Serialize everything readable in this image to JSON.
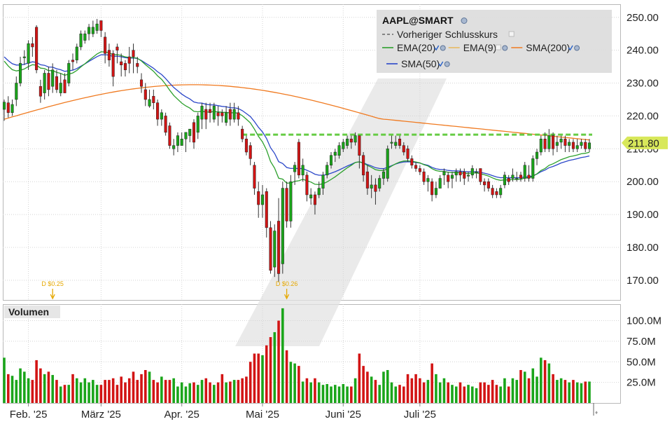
{
  "chart_data": {
    "type": "candlestick",
    "symbol": "AAPL@SMART",
    "last_price_label": "211.80",
    "prev_close": 214.3,
    "colors": {
      "up": "#1aa51a",
      "down": "#d21414",
      "ema20": "#2ca02c",
      "ema9": "#e8b75a",
      "sma200": "#f07a20",
      "sma50": "#2b47c9",
      "prev_close": "#66cc44",
      "dividend": "#e6a800",
      "price_tag": "#d8e85a"
    },
    "legend": {
      "row1": [
        {
          "label": "Vorheriger Schlusskurs",
          "style": "dashed",
          "color": "#666666"
        }
      ],
      "row2": [
        {
          "label": "EMA(20)",
          "color": "#2ca02c"
        },
        {
          "label": "EMA(9)",
          "color": "#e8b75a"
        },
        {
          "label": "SMA(200)",
          "color": "#f07a20"
        }
      ],
      "row3": [
        {
          "label": "SMA(50)",
          "color": "#2b47c9"
        }
      ]
    },
    "price_axis": {
      "min": 164,
      "max": 254,
      "ticks": [
        "170.00",
        "180.00",
        "190.00",
        "200.00",
        "210.00",
        "220.00",
        "230.00",
        "240.00",
        "250.00"
      ]
    },
    "volume_axis": {
      "title": "Volumen",
      "min": 0,
      "max": 120,
      "ticks": [
        "25.0M",
        "50.0M",
        "75.0M",
        "100.0M"
      ]
    },
    "time_axis": {
      "labels": [
        {
          "index": 6,
          "text": "Feb. '25"
        },
        {
          "index": 24,
          "text": "März '25"
        },
        {
          "index": 44,
          "text": "Apr. '25"
        },
        {
          "index": 64,
          "text": "Mai '25"
        },
        {
          "index": 84,
          "text": "Juni '25"
        },
        {
          "index": 103,
          "text": "Juli '25"
        }
      ]
    },
    "dividends": [
      {
        "index": 12,
        "text": "D $0.25"
      },
      {
        "index": 70,
        "text": "D $0.26"
      }
    ],
    "bars": [
      {
        "o": 222,
        "c": 224.2,
        "h": 225,
        "l": 218.5,
        "v": 55
      },
      {
        "o": 224,
        "c": 221,
        "h": 226,
        "l": 219.5,
        "v": 35
      },
      {
        "o": 221,
        "c": 223.5,
        "h": 225,
        "l": 220,
        "v": 33
      },
      {
        "o": 225,
        "c": 230,
        "h": 232,
        "l": 223,
        "v": 28
      },
      {
        "o": 230,
        "c": 236,
        "h": 238,
        "l": 229,
        "v": 42
      },
      {
        "o": 238,
        "c": 238,
        "h": 240,
        "l": 235.5,
        "v": 38
      },
      {
        "o": 236,
        "c": 242,
        "h": 243,
        "l": 234,
        "v": 30
      },
      {
        "o": 242,
        "c": 241,
        "h": 244,
        "l": 238,
        "v": 28
      },
      {
        "o": 247,
        "c": 234,
        "h": 247.6,
        "l": 233,
        "v": 52
      },
      {
        "o": 229,
        "c": 226,
        "h": 231,
        "l": 224,
        "v": 42
      },
      {
        "o": 227,
        "c": 233,
        "h": 234,
        "l": 225,
        "v": 35
      },
      {
        "o": 233,
        "c": 228,
        "h": 235,
        "l": 226,
        "v": 38
      },
      {
        "o": 229,
        "c": 234,
        "h": 236,
        "l": 227,
        "v": 34
      },
      {
        "o": 232,
        "c": 228,
        "h": 234,
        "l": 227,
        "v": 28
      },
      {
        "o": 227,
        "c": 230,
        "h": 233,
        "l": 226,
        "v": 20
      },
      {
        "o": 231,
        "c": 227,
        "h": 233,
        "l": 227,
        "v": 22
      },
      {
        "o": 230,
        "c": 236,
        "h": 237,
        "l": 229,
        "v": 22
      },
      {
        "o": 237,
        "c": 236.5,
        "h": 239,
        "l": 234,
        "v": 35
      },
      {
        "o": 237,
        "c": 241,
        "h": 242,
        "l": 236,
        "v": 30
      },
      {
        "o": 241,
        "c": 245,
        "h": 246,
        "l": 240,
        "v": 25
      },
      {
        "o": 243,
        "c": 245,
        "h": 246,
        "l": 242,
        "v": 30
      },
      {
        "o": 245,
        "c": 247,
        "h": 248,
        "l": 243,
        "v": 25
      },
      {
        "o": 245,
        "c": 247,
        "h": 249,
        "l": 244,
        "v": 28
      },
      {
        "o": 246,
        "c": 248,
        "h": 249.5,
        "l": 245,
        "v": 22
      },
      {
        "o": 249,
        "c": 246,
        "h": 249,
        "l": 244,
        "v": 22
      },
      {
        "o": 244,
        "c": 239,
        "h": 245.5,
        "l": 236,
        "v": 28
      },
      {
        "o": 240,
        "c": 237,
        "h": 242,
        "l": 235,
        "v": 28
      },
      {
        "o": 239,
        "c": 232,
        "h": 240,
        "l": 229,
        "v": 30
      },
      {
        "o": 241,
        "c": 240,
        "h": 242,
        "l": 236,
        "v": 22
      },
      {
        "o": 236.5,
        "c": 235.5,
        "h": 239,
        "l": 232,
        "v": 32
      },
      {
        "o": 236,
        "c": 234,
        "h": 237,
        "l": 232,
        "v": 25
      },
      {
        "o": 238,
        "c": 236,
        "h": 241,
        "l": 233,
        "v": 30
      },
      {
        "o": 240,
        "c": 238,
        "h": 242,
        "l": 233,
        "v": 38
      },
      {
        "o": 236,
        "c": 235,
        "h": 238,
        "l": 233,
        "v": 28
      },
      {
        "o": 231,
        "c": 229,
        "h": 233,
        "l": 227,
        "v": 35
      },
      {
        "o": 228,
        "c": 225,
        "h": 230,
        "l": 223,
        "v": 40
      },
      {
        "o": 223,
        "c": 225,
        "h": 228,
        "l": 222.5,
        "v": 38
      },
      {
        "o": 226,
        "c": 224,
        "h": 228,
        "l": 222,
        "v": 28
      },
      {
        "o": 224,
        "c": 219,
        "h": 225,
        "l": 217,
        "v": 25
      },
      {
        "o": 219,
        "c": 221,
        "h": 222,
        "l": 217,
        "v": 32
      },
      {
        "o": 220,
        "c": 215,
        "h": 221,
        "l": 214,
        "v": 28
      },
      {
        "o": 217,
        "c": 211,
        "h": 218,
        "l": 210,
        "v": 28
      },
      {
        "o": 210,
        "c": 211,
        "h": 213,
        "l": 208,
        "v": 30
      },
      {
        "o": 211,
        "c": 214,
        "h": 215,
        "l": 209,
        "v": 20
      },
      {
        "o": 211,
        "c": 213,
        "h": 215,
        "l": 211,
        "v": 25
      },
      {
        "o": 213,
        "c": 215,
        "h": 215,
        "l": 209,
        "v": 20
      },
      {
        "o": 214,
        "c": 216,
        "h": 216,
        "l": 212,
        "v": 24
      },
      {
        "o": 218,
        "c": 212,
        "h": 219,
        "l": 210,
        "v": 25
      },
      {
        "o": 215,
        "c": 220,
        "h": 221,
        "l": 213,
        "v": 22
      },
      {
        "o": 219,
        "c": 223,
        "h": 224,
        "l": 216,
        "v": 28
      },
      {
        "o": 222,
        "c": 219,
        "h": 224,
        "l": 216,
        "v": 30
      },
      {
        "o": 222,
        "c": 221,
        "h": 224,
        "l": 218,
        "v": 25
      },
      {
        "o": 219,
        "c": 223,
        "h": 224,
        "l": 218,
        "v": 22
      },
      {
        "o": 221,
        "c": 220,
        "h": 223,
        "l": 217,
        "v": 25
      },
      {
        "o": 221,
        "c": 220,
        "h": 222,
        "l": 218,
        "v": 35
      },
      {
        "o": 218,
        "c": 221,
        "h": 223,
        "l": 217,
        "v": 25
      },
      {
        "o": 222,
        "c": 219,
        "h": 224,
        "l": 217,
        "v": 26
      },
      {
        "o": 219,
        "c": 222,
        "h": 224,
        "l": 218,
        "v": 28
      },
      {
        "o": 221,
        "c": 219,
        "h": 223,
        "l": 217,
        "v": 28
      },
      {
        "o": 216,
        "c": 213,
        "h": 217,
        "l": 212,
        "v": 30
      },
      {
        "o": 213,
        "c": 209,
        "h": 214,
        "l": 208,
        "v": 32
      },
      {
        "o": 211,
        "c": 207,
        "h": 212,
        "l": 205,
        "v": 50
      },
      {
        "o": 205,
        "c": 198,
        "h": 206,
        "l": 196,
        "v": 60
      },
      {
        "o": 197,
        "c": 193,
        "h": 200,
        "l": 189,
        "v": 60
      },
      {
        "o": 193,
        "c": 196,
        "h": 199,
        "l": 189,
        "v": 58
      },
      {
        "o": 197,
        "c": 186,
        "h": 198,
        "l": 183,
        "v": 70
      }
    ],
    "bars_cont": [
      {
        "o": 186,
        "c": 173,
        "h": 188,
        "l": 172,
        "v": 80
      },
      {
        "o": 174,
        "c": 185,
        "h": 187,
        "l": 171,
        "v": 86
      },
      {
        "o": 188,
        "c": 172,
        "h": 195,
        "l": 169.5,
        "v": 100
      },
      {
        "o": 175,
        "c": 198,
        "h": 200,
        "l": 172,
        "v": 115
      },
      {
        "o": 198,
        "c": 188,
        "h": 200,
        "l": 186,
        "v": 64
      },
      {
        "o": 188,
        "c": 200,
        "h": 202,
        "l": 186,
        "v": 50
      },
      {
        "o": 203,
        "c": 205,
        "h": 206,
        "l": 199,
        "v": 48
      },
      {
        "o": 212,
        "c": 202,
        "h": 213,
        "l": 201,
        "v": 45
      },
      {
        "o": 202,
        "c": 205,
        "h": 207,
        "l": 200,
        "v": 26
      },
      {
        "o": 202,
        "c": 196,
        "h": 203,
        "l": 194,
        "v": 30
      },
      {
        "o": 195,
        "c": 196,
        "h": 198,
        "l": 193,
        "v": 25
      },
      {
        "o": 196,
        "c": 193,
        "h": 197,
        "l": 190,
        "v": 30
      },
      {
        "o": 196,
        "c": 198,
        "h": 200,
        "l": 195,
        "v": 25
      },
      {
        "o": 198,
        "c": 202,
        "h": 203,
        "l": 196,
        "v": 22
      },
      {
        "o": 202,
        "c": 205,
        "h": 206,
        "l": 201,
        "v": 23
      },
      {
        "o": 205,
        "c": 208,
        "h": 209,
        "l": 204,
        "v": 20
      },
      {
        "o": 208,
        "c": 209,
        "h": 210,
        "l": 206,
        "v": 22
      },
      {
        "o": 208,
        "c": 211,
        "h": 212,
        "l": 207,
        "v": 20
      },
      {
        "o": 210,
        "c": 212,
        "h": 213,
        "l": 209,
        "v": 23
      },
      {
        "o": 211,
        "c": 213,
        "h": 214,
        "l": 210,
        "v": 20
      },
      {
        "o": 213,
        "c": 212,
        "h": 214,
        "l": 210,
        "v": 20
      },
      {
        "o": 212,
        "c": 214,
        "h": 215,
        "l": 211,
        "v": 30
      },
      {
        "o": 214,
        "c": 208,
        "h": 214,
        "l": 204,
        "v": 60
      },
      {
        "o": 208,
        "c": 202,
        "h": 209,
        "l": 200,
        "v": 45
      },
      {
        "o": 203,
        "c": 198,
        "h": 205,
        "l": 196,
        "v": 38
      },
      {
        "o": 198,
        "c": 199,
        "h": 202,
        "l": 195,
        "v": 32
      },
      {
        "o": 199,
        "c": 197,
        "h": 201,
        "l": 193,
        "v": 28
      },
      {
        "o": 198,
        "c": 201,
        "h": 202,
        "l": 197,
        "v": 22
      },
      {
        "o": 201,
        "c": 203,
        "h": 204,
        "l": 199,
        "v": 38
      },
      {
        "o": 201,
        "c": 210,
        "h": 211,
        "l": 200,
        "v": 40
      },
      {
        "o": 212,
        "c": 212,
        "h": 214,
        "l": 210,
        "v": 25
      },
      {
        "o": 211,
        "c": 212,
        "h": 214,
        "l": 210,
        "v": 20
      },
      {
        "o": 213,
        "c": 211,
        "h": 214,
        "l": 210,
        "v": 22
      },
      {
        "o": 211,
        "c": 209,
        "h": 212,
        "l": 208,
        "v": 20
      },
      {
        "o": 210,
        "c": 207,
        "h": 211,
        "l": 206,
        "v": 35
      },
      {
        "o": 207,
        "c": 205,
        "h": 208,
        "l": 204,
        "v": 30
      },
      {
        "o": 205,
        "c": 204,
        "h": 206,
        "l": 203,
        "v": 35
      },
      {
        "o": 204,
        "c": 203,
        "h": 205,
        "l": 202,
        "v": 30
      },
      {
        "o": 203,
        "c": 200,
        "h": 204,
        "l": 199,
        "v": 25
      },
      {
        "o": 200,
        "c": 201,
        "h": 202,
        "l": 197,
        "v": 28
      },
      {
        "o": 200,
        "c": 196,
        "h": 201,
        "l": 194,
        "v": 48
      },
      {
        "o": 196,
        "c": 198,
        "h": 200,
        "l": 195,
        "v": 35
      },
      {
        "o": 198,
        "c": 201,
        "h": 202,
        "l": 198,
        "v": 25
      },
      {
        "o": 202,
        "c": 203,
        "h": 204,
        "l": 199,
        "v": 30
      },
      {
        "o": 202,
        "c": 200,
        "h": 203,
        "l": 198,
        "v": 25
      },
      {
        "o": 201,
        "c": 202,
        "h": 203,
        "l": 198,
        "v": 22
      },
      {
        "o": 202,
        "c": 203,
        "h": 204,
        "l": 200,
        "v": 20
      },
      {
        "o": 203,
        "c": 202,
        "h": 204,
        "l": 200,
        "v": 25
      },
      {
        "o": 203,
        "c": 201,
        "h": 204,
        "l": 199,
        "v": 20
      },
      {
        "o": 202,
        "c": 202,
        "h": 203,
        "l": 200,
        "v": 22
      },
      {
        "o": 202,
        "c": 204,
        "h": 205,
        "l": 201,
        "v": 20
      },
      {
        "o": 203,
        "c": 203,
        "h": 204,
        "l": 201,
        "v": 18
      },
      {
        "o": 204,
        "c": 200,
        "h": 204,
        "l": 199,
        "v": 25
      },
      {
        "o": 200,
        "c": 199,
        "h": 201,
        "l": 197,
        "v": 25
      },
      {
        "o": 200,
        "c": 198,
        "h": 201,
        "l": 197,
        "v": 22
      },
      {
        "o": 198,
        "c": 196,
        "h": 199,
        "l": 195,
        "v": 28
      },
      {
        "o": 197,
        "c": 196,
        "h": 198,
        "l": 195,
        "v": 22
      },
      {
        "o": 196,
        "c": 198,
        "h": 199,
        "l": 195,
        "v": 20
      },
      {
        "o": 199,
        "c": 202,
        "h": 203,
        "l": 198,
        "v": 30
      },
      {
        "o": 201,
        "c": 200,
        "h": 202,
        "l": 199,
        "v": 20
      },
      {
        "o": 201,
        "c": 202,
        "h": 204,
        "l": 200,
        "v": 30
      },
      {
        "o": 201,
        "c": 201,
        "h": 203,
        "l": 200,
        "v": 28
      },
      {
        "o": 202,
        "c": 201,
        "h": 203,
        "l": 200,
        "v": 40
      },
      {
        "o": 201,
        "c": 205,
        "h": 206,
        "l": 200,
        "v": 38
      },
      {
        "o": 202,
        "c": 201,
        "h": 205,
        "l": 200,
        "v": 30
      },
      {
        "o": 201,
        "c": 207,
        "h": 208,
        "l": 200,
        "v": 42
      }
    ],
    "bars_tail": [
      {
        "o": 207,
        "c": 209,
        "h": 210,
        "l": 205,
        "v": 32
      },
      {
        "o": 209,
        "c": 213,
        "h": 214,
        "l": 208,
        "v": 55
      },
      {
        "o": 213,
        "c": 210,
        "h": 215,
        "l": 209,
        "v": 52
      },
      {
        "o": 210,
        "c": 214,
        "h": 216,
        "l": 209,
        "v": 48
      },
      {
        "o": 214,
        "c": 210,
        "h": 215,
        "l": 208,
        "v": 35
      },
      {
        "o": 211,
        "c": 212,
        "h": 214,
        "l": 209,
        "v": 28
      },
      {
        "o": 212,
        "c": 213,
        "h": 214,
        "l": 210,
        "v": 30
      },
      {
        "o": 213,
        "c": 211,
        "h": 214,
        "l": 209,
        "v": 28
      },
      {
        "o": 211,
        "c": 212,
        "h": 213,
        "l": 209,
        "v": 25
      },
      {
        "o": 212,
        "c": 210,
        "h": 213,
        "l": 209,
        "v": 28
      },
      {
        "o": 210,
        "c": 211,
        "h": 213,
        "l": 209,
        "v": 25
      },
      {
        "o": 211,
        "c": 212,
        "h": 213,
        "l": 210,
        "v": 24
      },
      {
        "o": 212,
        "c": 210,
        "h": 213,
        "l": 209,
        "v": 26
      },
      {
        "o": 210,
        "c": 211.8,
        "h": 213,
        "l": 209,
        "v": 26
      }
    ]
  }
}
